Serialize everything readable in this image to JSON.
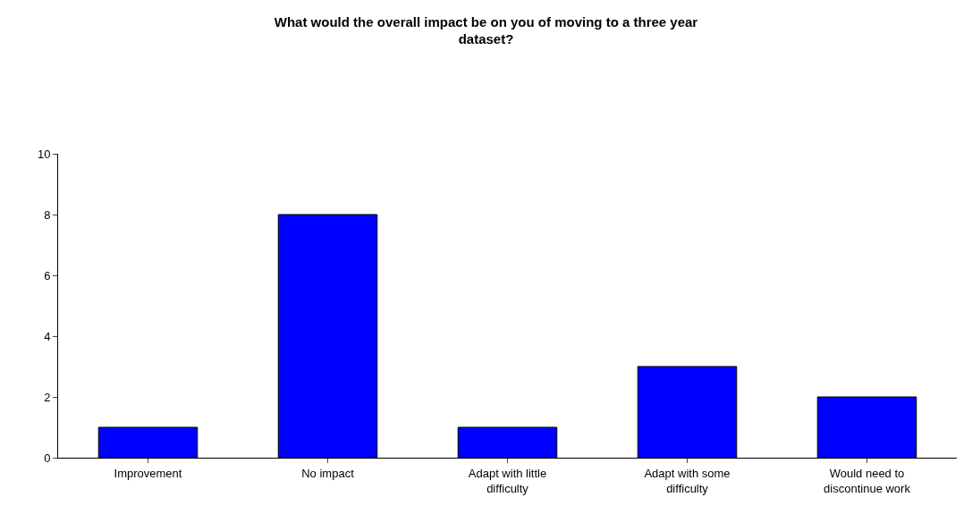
{
  "chart_data": {
    "type": "bar",
    "title": "What would the overall impact be on you of moving to a three year dataset?",
    "categories": [
      "Improvement",
      "No impact",
      "Adapt with little difficulty",
      "Adapt with some difficulty",
      "Would need to discontinue work"
    ],
    "values": [
      1,
      8,
      1,
      3,
      2
    ],
    "color": "#0000ff",
    "ylim": [
      0,
      10
    ],
    "yticks": [
      0,
      2,
      4,
      6,
      8,
      10
    ],
    "grid": false
  }
}
